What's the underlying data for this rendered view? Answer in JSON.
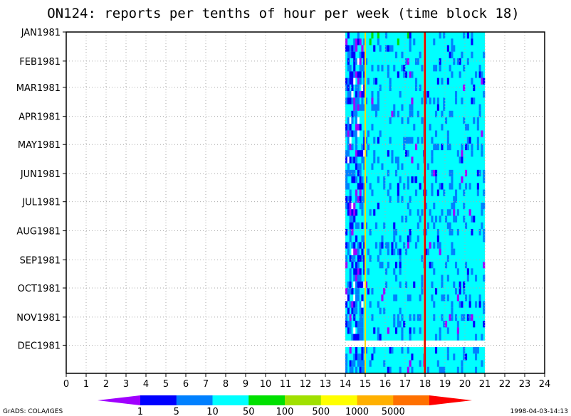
{
  "chart_data": {
    "type": "heatmap",
    "title": "ON124: reports per tenths of hour per week (time block 18)",
    "x_ticks": [
      "0",
      "1",
      "2",
      "3",
      "4",
      "5",
      "6",
      "7",
      "8",
      "9",
      "10",
      "11",
      "12",
      "13",
      "14",
      "15",
      "16",
      "17",
      "18",
      "19",
      "20",
      "21",
      "22",
      "23",
      "24"
    ],
    "xlim": [
      0,
      24
    ],
    "y_ticks": [
      "JAN1981",
      "FEB1981",
      "MAR1981",
      "APR1981",
      "MAY1981",
      "JUN1981",
      "JUL1981",
      "AUG1981",
      "SEP1981",
      "OCT1981",
      "NOV1981",
      "DEC1981"
    ],
    "ylim": [
      "1981-01-01",
      "1981-12-31"
    ],
    "grid": true,
    "data_x_range": [
      14,
      21
    ],
    "missing_week_start": "1981-11-26",
    "vertical_lines": [
      {
        "x": 15.0,
        "color": "#ffd700"
      },
      {
        "x": 18.0,
        "color": "#ff8000"
      },
      {
        "x": 18.0,
        "color": "#e00000"
      }
    ],
    "dominant_value_class": "10-50",
    "colorbar": {
      "labels": [
        "1",
        "5",
        "10",
        "50",
        "100",
        "500",
        "1000",
        "5000"
      ],
      "colors": [
        "#a000ff",
        "#0000ff",
        "#0080ff",
        "#00ffff",
        "#00e000",
        "#a0e000",
        "#ffff00",
        "#ffb000",
        "#ff7000",
        "#ff0000"
      ]
    }
  },
  "footer": {
    "left": "GrADS: COLA/IGES",
    "right": "1998-04-03-14:13"
  }
}
